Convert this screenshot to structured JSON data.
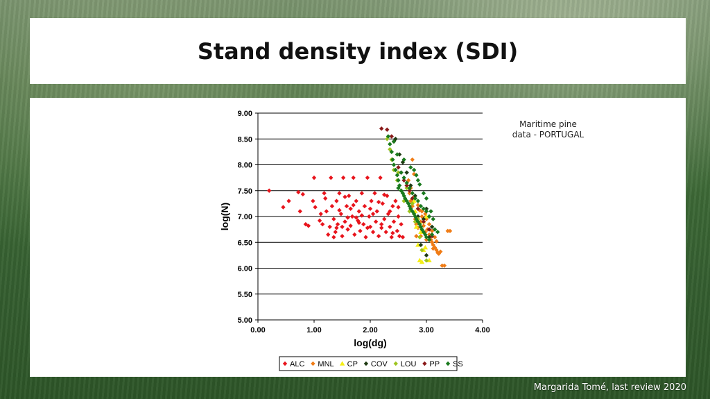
{
  "slide": {
    "title": "Stand density index (SDI)",
    "note_line1": "Maritime pine",
    "note_line2": "data - PORTUGAL",
    "footer": "Margarida Tomé, last review 2020"
  },
  "chart_data": {
    "type": "scatter",
    "xlabel": "log(dg)",
    "ylabel": "log(N)",
    "xlim": [
      0,
      4
    ],
    "ylim": [
      5,
      9
    ],
    "xticks": [
      "0.00",
      "1.00",
      "2.00",
      "3.00",
      "4.00"
    ],
    "yticks": [
      "5.00",
      "5.50",
      "6.00",
      "6.50",
      "7.00",
      "7.50",
      "8.00",
      "8.50",
      "9.00"
    ],
    "grid": "horizontal",
    "legend_position": "bottom",
    "series": [
      {
        "name": "ALC",
        "color": "#e8141c",
        "points": [
          [
            0.2,
            7.5
          ],
          [
            0.45,
            7.18
          ],
          [
            0.55,
            7.3
          ],
          [
            0.75,
            7.1
          ],
          [
            0.72,
            7.47
          ],
          [
            0.8,
            7.43
          ],
          [
            0.85,
            6.85
          ],
          [
            0.9,
            6.82
          ],
          [
            1.0,
            7.75
          ],
          [
            0.98,
            7.3
          ],
          [
            1.02,
            7.18
          ],
          [
            1.1,
            6.92
          ],
          [
            1.12,
            7.05
          ],
          [
            1.15,
            6.85
          ],
          [
            1.18,
            7.45
          ],
          [
            1.2,
            7.35
          ],
          [
            1.22,
            7.1
          ],
          [
            1.25,
            6.65
          ],
          [
            1.28,
            6.8
          ],
          [
            1.3,
            7.75
          ],
          [
            1.32,
            7.2
          ],
          [
            1.35,
            6.95
          ],
          [
            1.38,
            6.7
          ],
          [
            1.4,
            7.3
          ],
          [
            1.42,
            6.85
          ],
          [
            1.45,
            7.45
          ],
          [
            1.48,
            7.05
          ],
          [
            1.5,
            6.62
          ],
          [
            1.52,
            7.75
          ],
          [
            1.55,
            6.9
          ],
          [
            1.58,
            7.2
          ],
          [
            1.6,
            6.75
          ],
          [
            1.62,
            7.4
          ],
          [
            1.65,
            6.82
          ],
          [
            1.68,
            7.0
          ],
          [
            1.7,
            7.75
          ],
          [
            1.72,
            6.65
          ],
          [
            1.75,
            7.3
          ],
          [
            1.78,
            6.92
          ],
          [
            1.8,
            7.1
          ],
          [
            1.82,
            6.72
          ],
          [
            1.85,
            7.45
          ],
          [
            1.88,
            6.85
          ],
          [
            1.9,
            7.2
          ],
          [
            1.92,
            6.6
          ],
          [
            1.95,
            7.75
          ],
          [
            1.98,
            7.0
          ],
          [
            2.0,
            6.8
          ],
          [
            2.02,
            7.3
          ],
          [
            2.05,
            6.7
          ],
          [
            2.08,
            7.45
          ],
          [
            2.1,
            6.9
          ],
          [
            2.12,
            7.1
          ],
          [
            2.15,
            6.62
          ],
          [
            2.18,
            7.75
          ],
          [
            2.2,
            6.85
          ],
          [
            2.22,
            7.25
          ],
          [
            2.25,
            6.95
          ],
          [
            2.28,
            6.7
          ],
          [
            2.3,
            7.4
          ],
          [
            2.32,
            7.05
          ],
          [
            2.35,
            6.8
          ],
          [
            2.38,
            6.6
          ],
          [
            2.4,
            7.2
          ],
          [
            2.42,
            6.9
          ],
          [
            2.45,
            7.3
          ],
          [
            2.48,
            6.72
          ],
          [
            2.5,
            7.0
          ],
          [
            2.52,
            6.62
          ],
          [
            2.55,
            6.85
          ],
          [
            2.58,
            6.6
          ],
          [
            1.35,
            6.6
          ],
          [
            1.45,
            7.12
          ],
          [
            1.55,
            7.38
          ],
          [
            1.65,
            7.15
          ],
          [
            1.75,
            6.98
          ],
          [
            1.85,
            7.02
          ],
          [
            1.95,
            6.78
          ],
          [
            2.05,
            7.05
          ],
          [
            2.15,
            7.28
          ],
          [
            2.25,
            7.42
          ],
          [
            2.35,
            7.1
          ],
          [
            1.4,
            6.78
          ],
          [
            1.6,
            6.98
          ],
          [
            1.8,
            6.88
          ],
          [
            2.0,
            7.15
          ],
          [
            2.2,
            6.78
          ],
          [
            2.4,
            6.68
          ],
          [
            2.5,
            7.18
          ],
          [
            1.5,
            6.8
          ],
          [
            1.7,
            7.22
          ]
        ]
      },
      {
        "name": "MNL",
        "color": "#f07c16",
        "points": [
          [
            2.65,
            7.6
          ],
          [
            2.7,
            7.45
          ],
          [
            2.72,
            7.3
          ],
          [
            2.75,
            7.2
          ],
          [
            2.78,
            7.05
          ],
          [
            2.8,
            6.95
          ],
          [
            2.82,
            6.85
          ],
          [
            2.85,
            6.78
          ],
          [
            2.88,
            7.12
          ],
          [
            2.9,
            6.9
          ],
          [
            2.92,
            7.0
          ],
          [
            2.95,
            6.82
          ],
          [
            2.98,
            6.7
          ],
          [
            3.0,
            6.95
          ],
          [
            3.02,
            6.75
          ],
          [
            3.05,
            6.65
          ],
          [
            3.08,
            6.55
          ],
          [
            3.1,
            6.5
          ],
          [
            3.12,
            6.45
          ],
          [
            3.15,
            6.4
          ],
          [
            3.18,
            6.35
          ],
          [
            3.2,
            6.3
          ],
          [
            3.22,
            6.28
          ],
          [
            3.25,
            6.32
          ],
          [
            3.28,
            6.05
          ],
          [
            3.32,
            6.05
          ],
          [
            3.38,
            6.72
          ],
          [
            3.42,
            6.72
          ],
          [
            2.68,
            7.7
          ],
          [
            2.72,
            7.55
          ],
          [
            2.78,
            7.38
          ],
          [
            2.85,
            7.22
          ],
          [
            2.92,
            7.1
          ],
          [
            2.98,
            7.05
          ],
          [
            3.05,
            6.85
          ],
          [
            3.1,
            6.72
          ],
          [
            3.15,
            6.6
          ],
          [
            2.75,
            8.1
          ],
          [
            2.78,
            7.82
          ],
          [
            2.82,
            6.62
          ],
          [
            2.9,
            6.62
          ],
          [
            3.0,
            6.55
          ],
          [
            3.12,
            6.38
          ],
          [
            3.18,
            6.52
          ]
        ]
      },
      {
        "name": "CP",
        "color": "#f5ee16",
        "points": [
          [
            2.85,
            6.45
          ],
          [
            2.88,
            6.15
          ],
          [
            2.92,
            6.12
          ],
          [
            2.95,
            6.35
          ],
          [
            2.9,
            6.7
          ],
          [
            2.95,
            6.9
          ],
          [
            3.0,
            7.0
          ],
          [
            2.8,
            7.1
          ],
          [
            2.78,
            7.3
          ],
          [
            3.05,
            6.15
          ],
          [
            2.98,
            6.4
          ],
          [
            2.82,
            6.8
          ]
        ]
      },
      {
        "name": "COV",
        "color": "#1e3a12",
        "points": [
          [
            2.9,
            6.45
          ],
          [
            3.0,
            6.25
          ],
          [
            3.05,
            6.6
          ],
          [
            2.95,
            6.95
          ],
          [
            3.1,
            6.8
          ],
          [
            2.85,
            7.0
          ],
          [
            3.0,
            7.15
          ],
          [
            2.8,
            7.4
          ],
          [
            2.72,
            7.6
          ],
          [
            2.65,
            7.85
          ],
          [
            2.58,
            8.05
          ],
          [
            2.52,
            8.2
          ],
          [
            2.45,
            8.5
          ]
        ]
      },
      {
        "name": "LOU",
        "color": "#9dc41e",
        "points": [
          [
            2.3,
            8.5
          ],
          [
            2.35,
            8.3
          ],
          [
            2.38,
            8.1
          ],
          [
            2.42,
            7.9
          ],
          [
            2.48,
            7.7
          ],
          [
            2.55,
            7.5
          ],
          [
            2.6,
            7.3
          ],
          [
            2.7,
            7.1
          ],
          [
            2.8,
            6.9
          ],
          [
            2.88,
            6.6
          ],
          [
            2.92,
            6.35
          ],
          [
            3.0,
            6.15
          ],
          [
            2.5,
            7.85
          ],
          [
            2.65,
            7.55
          ],
          [
            2.75,
            7.25
          ],
          [
            2.85,
            6.95
          ]
        ]
      },
      {
        "name": "PP",
        "color": "#8a1a1a",
        "points": [
          [
            2.2,
            8.7
          ],
          [
            2.3,
            8.68
          ],
          [
            2.38,
            8.55
          ],
          [
            2.42,
            8.45
          ],
          [
            2.55,
            7.85
          ],
          [
            2.6,
            7.7
          ],
          [
            2.5,
            7.95
          ],
          [
            2.65,
            7.6
          ],
          [
            2.7,
            7.5
          ],
          [
            2.75,
            7.35
          ],
          [
            2.85,
            7.15
          ],
          [
            2.95,
            6.9
          ],
          [
            3.05,
            6.75
          ],
          [
            3.1,
            6.62
          ]
        ]
      },
      {
        "name": "SS",
        "color": "#1a7a1e",
        "points": [
          [
            2.32,
            8.55
          ],
          [
            2.35,
            8.4
          ],
          [
            2.38,
            8.25
          ],
          [
            2.4,
            8.1
          ],
          [
            2.42,
            8.0
          ],
          [
            2.45,
            7.9
          ],
          [
            2.48,
            7.8
          ],
          [
            2.5,
            7.7
          ],
          [
            2.52,
            7.6
          ],
          [
            2.55,
            7.5
          ],
          [
            2.58,
            7.45
          ],
          [
            2.6,
            7.4
          ],
          [
            2.62,
            7.35
          ],
          [
            2.65,
            7.3
          ],
          [
            2.68,
            7.25
          ],
          [
            2.7,
            7.2
          ],
          [
            2.72,
            7.15
          ],
          [
            2.75,
            7.1
          ],
          [
            2.78,
            7.05
          ],
          [
            2.8,
            7.0
          ],
          [
            2.82,
            6.95
          ],
          [
            2.85,
            6.9
          ],
          [
            2.88,
            6.85
          ],
          [
            2.9,
            6.8
          ],
          [
            2.92,
            6.75
          ],
          [
            2.95,
            6.7
          ],
          [
            2.98,
            6.65
          ],
          [
            3.0,
            6.6
          ],
          [
            3.05,
            6.55
          ],
          [
            3.1,
            6.65
          ],
          [
            3.15,
            6.75
          ],
          [
            2.55,
            7.85
          ],
          [
            2.6,
            7.75
          ],
          [
            2.65,
            7.65
          ],
          [
            2.7,
            7.55
          ],
          [
            2.75,
            7.45
          ],
          [
            2.8,
            7.35
          ],
          [
            2.85,
            7.3
          ],
          [
            2.9,
            7.2
          ],
          [
            2.95,
            7.15
          ],
          [
            3.0,
            7.1
          ],
          [
            3.05,
            7.0
          ],
          [
            2.72,
            7.95
          ],
          [
            2.78,
            7.9
          ],
          [
            2.82,
            7.8
          ],
          [
            2.88,
            7.62
          ],
          [
            2.95,
            7.45
          ],
          [
            3.0,
            7.35
          ],
          [
            3.08,
            7.1
          ],
          [
            2.42,
            8.45
          ],
          [
            2.48,
            8.2
          ],
          [
            2.6,
            8.1
          ],
          [
            2.85,
            7.7
          ],
          [
            3.12,
            6.95
          ],
          [
            3.2,
            6.7
          ],
          [
            2.5,
            7.55
          ]
        ]
      }
    ]
  }
}
